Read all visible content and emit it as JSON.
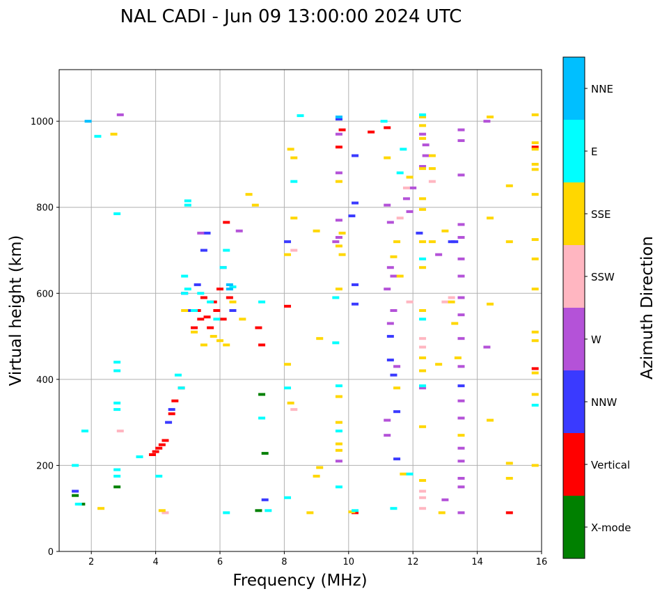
{
  "chart_data": {
    "type": "scatter",
    "title": "NAL CADI - Jun 09 13:00:00 2024 UTC",
    "xlabel": "Frequency (MHz)",
    "ylabel": "Virtual height (km)",
    "xlim": [
      1,
      16
    ],
    "ylim": [
      0,
      1120
    ],
    "xticks": [
      2,
      4,
      6,
      8,
      10,
      12,
      14,
      16
    ],
    "yticks": [
      0,
      200,
      400,
      600,
      800,
      1000
    ],
    "grid": true,
    "colorbar": {
      "label": "Azimuth Direction",
      "categories": [
        {
          "name": "X-mode",
          "color": "#008000"
        },
        {
          "name": "Vertical",
          "color": "#ff0000"
        },
        {
          "name": "NNW",
          "color": "#3a3aff"
        },
        {
          "name": "W",
          "color": "#b452d8"
        },
        {
          "name": "SSW",
          "color": "#ffb6c1"
        },
        {
          "name": "SSE",
          "color": "#ffd700"
        },
        {
          "name": "E",
          "color": "#00ffff"
        },
        {
          "name": "NNE",
          "color": "#00bfff"
        }
      ]
    },
    "series": [
      {
        "name": "X-mode",
        "points": [
          [
            1.5,
            130
          ],
          [
            1.7,
            110
          ],
          [
            2.8,
            150
          ],
          [
            7.3,
            365
          ],
          [
            7.4,
            228
          ],
          [
            7.2,
            95
          ]
        ]
      },
      {
        "name": "Vertical",
        "points": [
          [
            3.9,
            225
          ],
          [
            4.0,
            232
          ],
          [
            4.1,
            240
          ],
          [
            4.2,
            248
          ],
          [
            4.3,
            258
          ],
          [
            4.5,
            320
          ],
          [
            4.6,
            350
          ],
          [
            4.8,
            380
          ],
          [
            5.2,
            520
          ],
          [
            5.3,
            560
          ],
          [
            5.4,
            540
          ],
          [
            5.5,
            590
          ],
          [
            5.6,
            545
          ],
          [
            5.7,
            520
          ],
          [
            5.8,
            580
          ],
          [
            5.9,
            560
          ],
          [
            6.0,
            610
          ],
          [
            6.1,
            540
          ],
          [
            6.2,
            765
          ],
          [
            6.3,
            590
          ],
          [
            7.2,
            520
          ],
          [
            7.3,
            480
          ],
          [
            8.1,
            570
          ],
          [
            9.7,
            940
          ],
          [
            9.8,
            980
          ],
          [
            10.7,
            975
          ],
          [
            10.2,
            90
          ],
          [
            11.2,
            985
          ],
          [
            15.0,
            90
          ],
          [
            15.8,
            425
          ],
          [
            15.8,
            940
          ]
        ]
      },
      {
        "name": "NNW",
        "points": [
          [
            1.5,
            140
          ],
          [
            4.4,
            300
          ],
          [
            4.5,
            330
          ],
          [
            4.9,
            600
          ],
          [
            5.1,
            560
          ],
          [
            5.3,
            620
          ],
          [
            5.5,
            700
          ],
          [
            5.6,
            740
          ],
          [
            6.4,
            560
          ],
          [
            7.4,
            120
          ],
          [
            8.1,
            720
          ],
          [
            9.7,
            1005
          ],
          [
            10.2,
            920
          ],
          [
            10.2,
            810
          ],
          [
            10.1,
            780
          ],
          [
            10.2,
            620
          ],
          [
            10.2,
            575
          ],
          [
            11.3,
            500
          ],
          [
            11.3,
            445
          ],
          [
            11.4,
            410
          ],
          [
            11.5,
            325
          ],
          [
            11.5,
            215
          ],
          [
            12.2,
            740
          ],
          [
            13.2,
            720
          ],
          [
            13.3,
            720
          ],
          [
            13.5,
            385
          ]
        ]
      },
      {
        "name": "W",
        "points": [
          [
            2.9,
            1015
          ],
          [
            5.4,
            740
          ],
          [
            6.1,
            660
          ],
          [
            6.6,
            745
          ],
          [
            9.7,
            970
          ],
          [
            9.7,
            880
          ],
          [
            9.7,
            770
          ],
          [
            9.7,
            730
          ],
          [
            9.6,
            720
          ],
          [
            9.7,
            210
          ],
          [
            11.2,
            805
          ],
          [
            11.3,
            765
          ],
          [
            11.3,
            660
          ],
          [
            11.4,
            640
          ],
          [
            11.2,
            610
          ],
          [
            11.3,
            530
          ],
          [
            11.4,
            560
          ],
          [
            11.5,
            430
          ],
          [
            11.2,
            305
          ],
          [
            11.2,
            270
          ],
          [
            11.8,
            820
          ],
          [
            11.9,
            790
          ],
          [
            12.0,
            845
          ],
          [
            12.3,
            895
          ],
          [
            12.4,
            945
          ],
          [
            12.4,
            920
          ],
          [
            12.3,
            970
          ],
          [
            12.3,
            380
          ],
          [
            12.8,
            690
          ],
          [
            13.0,
            120
          ],
          [
            13.5,
            980
          ],
          [
            13.5,
            955
          ],
          [
            13.5,
            875
          ],
          [
            13.5,
            760
          ],
          [
            13.5,
            730
          ],
          [
            13.5,
            680
          ],
          [
            13.5,
            640
          ],
          [
            13.5,
            590
          ],
          [
            13.5,
            550
          ],
          [
            13.5,
            495
          ],
          [
            13.5,
            430
          ],
          [
            13.5,
            350
          ],
          [
            13.5,
            310
          ],
          [
            13.5,
            240
          ],
          [
            13.5,
            210
          ],
          [
            13.5,
            170
          ],
          [
            13.5,
            150
          ],
          [
            13.5,
            90
          ],
          [
            14.3,
            475
          ],
          [
            14.3,
            1000
          ]
        ]
      },
      {
        "name": "SSW",
        "points": [
          [
            2.9,
            280
          ],
          [
            4.3,
            90
          ],
          [
            8.3,
            700
          ],
          [
            8.3,
            330
          ],
          [
            11.6,
            775
          ],
          [
            11.8,
            845
          ],
          [
            11.9,
            580
          ],
          [
            12.3,
            495
          ],
          [
            12.3,
            475
          ],
          [
            12.3,
            140
          ],
          [
            12.3,
            125
          ],
          [
            12.3,
            100
          ],
          [
            12.6,
            860
          ],
          [
            13.0,
            580
          ],
          [
            13.2,
            590
          ]
        ]
      },
      {
        "name": "SSE",
        "points": [
          [
            2.3,
            100
          ],
          [
            2.7,
            970
          ],
          [
            4.2,
            95
          ],
          [
            4.9,
            560
          ],
          [
            5.2,
            510
          ],
          [
            5.5,
            480
          ],
          [
            5.8,
            500
          ],
          [
            6.0,
            490
          ],
          [
            6.2,
            480
          ],
          [
            6.4,
            580
          ],
          [
            6.7,
            540
          ],
          [
            6.9,
            830
          ],
          [
            7.1,
            805
          ],
          [
            8.2,
            935
          ],
          [
            8.3,
            915
          ],
          [
            8.3,
            775
          ],
          [
            8.1,
            690
          ],
          [
            8.1,
            435
          ],
          [
            8.2,
            345
          ],
          [
            8.8,
            90
          ],
          [
            9.0,
            745
          ],
          [
            9.1,
            495
          ],
          [
            9.0,
            175
          ],
          [
            9.1,
            195
          ],
          [
            9.7,
            860
          ],
          [
            9.7,
            710
          ],
          [
            9.8,
            690
          ],
          [
            9.7,
            610
          ],
          [
            9.8,
            740
          ],
          [
            9.7,
            360
          ],
          [
            9.7,
            300
          ],
          [
            9.7,
            250
          ],
          [
            9.7,
            235
          ],
          [
            10.1,
            92
          ],
          [
            11.2,
            915
          ],
          [
            11.4,
            685
          ],
          [
            11.5,
            720
          ],
          [
            11.6,
            640
          ],
          [
            11.5,
            380
          ],
          [
            11.7,
            180
          ],
          [
            11.9,
            870
          ],
          [
            12.3,
            1010
          ],
          [
            12.3,
            990
          ],
          [
            12.3,
            960
          ],
          [
            12.3,
            890
          ],
          [
            12.3,
            820
          ],
          [
            12.3,
            795
          ],
          [
            12.3,
            720
          ],
          [
            12.3,
            660
          ],
          [
            12.3,
            560
          ],
          [
            12.3,
            450
          ],
          [
            12.3,
            420
          ],
          [
            12.3,
            290
          ],
          [
            12.3,
            165
          ],
          [
            12.6,
            890
          ],
          [
            12.6,
            920
          ],
          [
            12.6,
            720
          ],
          [
            12.8,
            435
          ],
          [
            12.9,
            90
          ],
          [
            13.0,
            745
          ],
          [
            13.2,
            580
          ],
          [
            13.3,
            530
          ],
          [
            13.4,
            450
          ],
          [
            13.5,
            270
          ],
          [
            14.4,
            1010
          ],
          [
            14.4,
            775
          ],
          [
            14.4,
            575
          ],
          [
            14.4,
            305
          ],
          [
            15.0,
            850
          ],
          [
            15.0,
            720
          ],
          [
            15.0,
            205
          ],
          [
            15.0,
            170
          ],
          [
            15.8,
            1015
          ],
          [
            15.8,
            950
          ],
          [
            15.8,
            935
          ],
          [
            15.8,
            900
          ],
          [
            15.8,
            888
          ],
          [
            15.8,
            830
          ],
          [
            15.8,
            725
          ],
          [
            15.8,
            680
          ],
          [
            15.8,
            610
          ],
          [
            15.8,
            510
          ],
          [
            15.8,
            490
          ],
          [
            15.8,
            415
          ],
          [
            15.8,
            365
          ],
          [
            15.8,
            200
          ]
        ]
      },
      {
        "name": "E",
        "points": [
          [
            1.5,
            200
          ],
          [
            1.6,
            110
          ],
          [
            1.8,
            280
          ],
          [
            2.2,
            965
          ],
          [
            2.8,
            785
          ],
          [
            2.8,
            440
          ],
          [
            2.8,
            420
          ],
          [
            2.8,
            345
          ],
          [
            2.8,
            330
          ],
          [
            2.8,
            190
          ],
          [
            2.8,
            175
          ],
          [
            3.5,
            220
          ],
          [
            4.1,
            175
          ],
          [
            4.7,
            410
          ],
          [
            4.8,
            380
          ],
          [
            4.9,
            640
          ],
          [
            4.9,
            600
          ],
          [
            5.0,
            610
          ],
          [
            5.0,
            815
          ],
          [
            5.0,
            805
          ],
          [
            5.2,
            560
          ],
          [
            5.4,
            600
          ],
          [
            5.7,
            580
          ],
          [
            5.9,
            540
          ],
          [
            6.1,
            660
          ],
          [
            6.2,
            700
          ],
          [
            6.4,
            615
          ],
          [
            6.2,
            90
          ],
          [
            7.3,
            580
          ],
          [
            7.3,
            310
          ],
          [
            7.5,
            95
          ],
          [
            8.1,
            380
          ],
          [
            8.1,
            125
          ],
          [
            8.5,
            1013
          ],
          [
            8.3,
            860
          ],
          [
            9.6,
            590
          ],
          [
            9.6,
            485
          ],
          [
            9.7,
            385
          ],
          [
            9.7,
            280
          ],
          [
            9.7,
            150
          ],
          [
            10.2,
            95
          ],
          [
            11.1,
            1000
          ],
          [
            11.4,
            100
          ],
          [
            11.6,
            880
          ],
          [
            11.7,
            935
          ],
          [
            11.9,
            180
          ],
          [
            12.3,
            1015
          ],
          [
            12.3,
            540
          ],
          [
            12.3,
            385
          ],
          [
            12.3,
            680
          ],
          [
            15.8,
            340
          ]
        ]
      },
      {
        "name": "NNE",
        "points": [
          [
            1.9,
            1000
          ],
          [
            6.3,
            620
          ],
          [
            6.3,
            610
          ],
          [
            9.7,
            1010
          ]
        ]
      }
    ]
  }
}
